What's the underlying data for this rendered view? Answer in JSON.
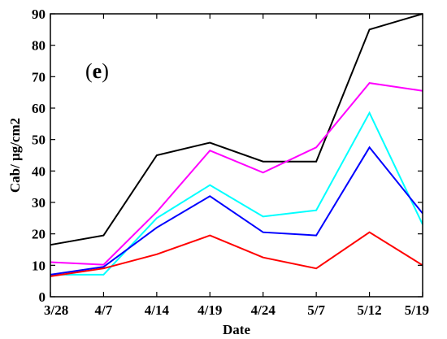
{
  "chart_data": {
    "type": "line",
    "title": "",
    "panel_label": "(e)",
    "xlabel": "Date",
    "ylabel": "Cab/ μg/cm2",
    "categories": [
      "3/28",
      "4/7",
      "4/14",
      "4/19",
      "4/24",
      "5/7",
      "5/12",
      "5/19"
    ],
    "ylim": [
      0,
      90
    ],
    "yticks": [
      "0",
      "10",
      "20",
      "30",
      "40",
      "50",
      "60",
      "70",
      "80",
      "90"
    ],
    "grid": false,
    "legend": "none",
    "series": [
      {
        "color": "#000000",
        "values": [
          16.5,
          19.5,
          45,
          49,
          43,
          43,
          85,
          90
        ]
      },
      {
        "color": "#ff00ff",
        "values": [
          11,
          10.2,
          27,
          46.5,
          39.5,
          47.5,
          68,
          65.5
        ]
      },
      {
        "color": "#00ffff",
        "values": [
          7,
          7,
          25,
          35.5,
          25.5,
          27.5,
          58.5,
          23
        ]
      },
      {
        "color": "#0000ff",
        "values": [
          7,
          9.5,
          22,
          32,
          20.5,
          19.5,
          47.5,
          26.5
        ]
      },
      {
        "color": "#ff0000",
        "values": [
          6.5,
          9,
          13.5,
          19.5,
          12.5,
          9,
          20.5,
          10
        ]
      }
    ]
  }
}
